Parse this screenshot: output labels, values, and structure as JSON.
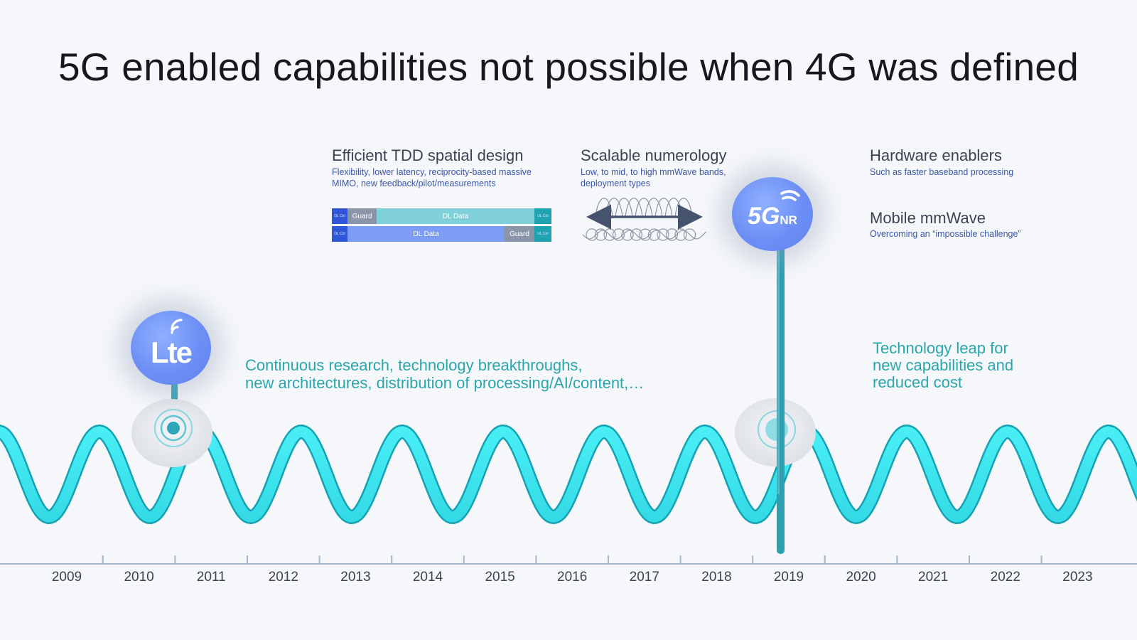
{
  "slide": {
    "title": "5G enabled capabilities not possible when 4G was defined"
  },
  "features": {
    "tdd": {
      "title": "Efficient TDD spatial design",
      "desc_line1": "Flexibility, lower latency, reciprocity-based massive",
      "desc_line2": "MIMO, new feedback/pilot/measurements",
      "diagram": {
        "row1": {
          "ctl": "DL Ctrl",
          "guard": "Guard",
          "data": "DL Data",
          "ul": "UL Ctrl"
        },
        "row2": {
          "ctl": "DL Ctrl",
          "data": "DL Data",
          "guard": "Guard",
          "ul": "UL Ctrl"
        }
      }
    },
    "numerology": {
      "title": "Scalable numerology",
      "desc_line1": "Low, to mid, to high mmWave bands,",
      "desc_line2": "deployment types"
    },
    "hardware": {
      "title": "Hardware enablers",
      "desc": "Such as faster baseband processing"
    },
    "mmwave": {
      "title": "Mobile mmWave",
      "desc": "Overcoming an “impossible challenge”"
    }
  },
  "icons": {
    "lte": {
      "name": "lte-icon",
      "label": "Lte"
    },
    "fiveg": {
      "name": "5g-nr-icon",
      "label_main": "5G",
      "label_sub": "NR"
    }
  },
  "callouts": {
    "research_line1": "Continuous research, technology breakthroughs,",
    "research_line2": "new architectures, distribution of processing/AI/content,…",
    "leap_line1": "Technology leap for",
    "leap_line2": "new capabilities and",
    "leap_line3": "reduced cost"
  },
  "timeline": {
    "years": [
      "2009",
      "2010",
      "2011",
      "2012",
      "2013",
      "2014",
      "2015",
      "2016",
      "2017",
      "2018",
      "2019",
      "2020",
      "2021",
      "2022",
      "2023"
    ]
  },
  "colors": {
    "wave": "#3ee6ee",
    "wave_dark": "#17a8b8",
    "accent_blue": "#6d8ff5",
    "teal_text": "#2aa6ad",
    "desc_blue": "#3b56a8"
  }
}
